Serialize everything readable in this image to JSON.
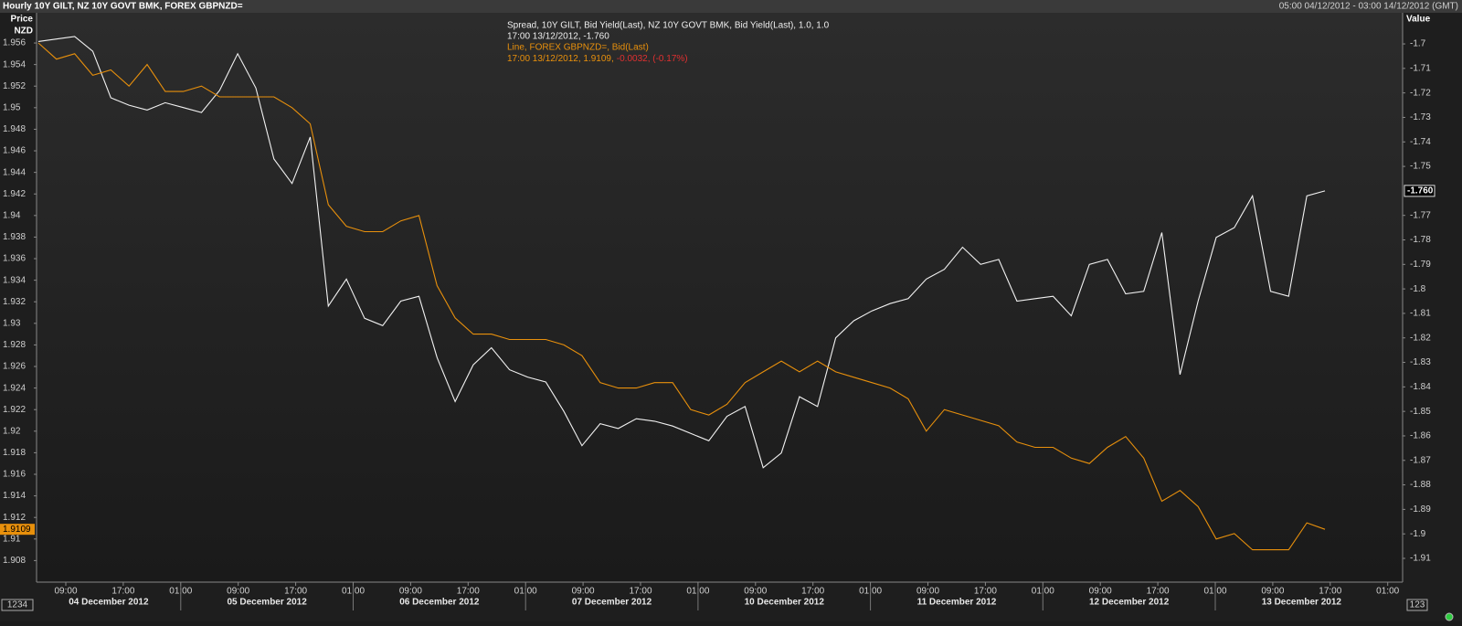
{
  "header": {
    "title": "Hourly 10Y GILT, NZ 10Y GOVT BMK, FOREX GBPNZD=",
    "range": "05:00 04/12/2012 - 03:00 14/12/2012 (GMT)"
  },
  "chart_data": {
    "type": "line",
    "y_title": "Price",
    "y_unit": "NZD",
    "y2_title": "Value",
    "x_tick_labels": [
      "09:00",
      "17:00",
      "01:00",
      "09:00",
      "17:00",
      "01:00",
      "09:00",
      "17:00",
      "01:00",
      "09:00",
      "17:00",
      "01:00",
      "09:00",
      "17:00",
      "01:00",
      "09:00",
      "17:00",
      "01:00",
      "09:00",
      "17:00",
      "01:00",
      "09:00",
      "17:00",
      "01:00"
    ],
    "date_labels": [
      "04 December 2012",
      "05 December 2012",
      "06 December 2012",
      "07 December 2012",
      "10 December 2012",
      "11 December 2012",
      "12 December 2012",
      "13 December 2012"
    ],
    "ylim": [
      1.906,
      1.9588
    ],
    "yticks": [
      1.908,
      1.91,
      1.912,
      1.914,
      1.916,
      1.918,
      1.92,
      1.922,
      1.924,
      1.926,
      1.928,
      1.93,
      1.932,
      1.934,
      1.936,
      1.938,
      1.94,
      1.942,
      1.944,
      1.946,
      1.948,
      1.95,
      1.952,
      1.954,
      1.956
    ],
    "y2lim": [
      -1.9197,
      -1.6873
    ],
    "y2ticks": [
      -1.7,
      -1.71,
      -1.72,
      -1.73,
      -1.74,
      -1.75,
      -1.77,
      -1.78,
      -1.79,
      -1.8,
      -1.81,
      -1.82,
      -1.83,
      -1.84,
      -1.85,
      -1.86,
      -1.87,
      -1.88,
      -1.89,
      -1.9,
      -1.91
    ],
    "series": [
      {
        "name": "Spread, 10Y GILT, Bid Yield(Last), NZ 10Y GOVT BMK, Bid Yield(Last),  1.0, 1.0",
        "info": "17:00 13/12/2012, -1.760",
        "last_label": "-1.760",
        "color": "#f2f2f2",
        "axis": "y2",
        "values": [
          -1.699,
          -1.698,
          -1.697,
          -1.703,
          -1.722,
          -1.725,
          -1.727,
          -1.724,
          -1.726,
          -1.728,
          -1.719,
          -1.704,
          -1.718,
          -1.747,
          -1.757,
          -1.738,
          -1.807,
          -1.796,
          -1.812,
          -1.815,
          -1.805,
          -1.803,
          -1.828,
          -1.846,
          -1.831,
          -1.824,
          -1.833,
          -1.836,
          -1.838,
          -1.85,
          -1.864,
          -1.855,
          -1.857,
          -1.853,
          -1.854,
          -1.856,
          -1.859,
          -1.862,
          -1.852,
          -1.848,
          -1.873,
          -1.867,
          -1.844,
          -1.848,
          -1.82,
          -1.813,
          -1.809,
          -1.806,
          -1.804,
          -1.796,
          -1.792,
          -1.783,
          -1.79,
          -1.788,
          -1.805,
          -1.804,
          -1.803,
          -1.811,
          -1.79,
          -1.788,
          -1.802,
          -1.801,
          -1.777,
          -1.835,
          -1.805,
          -1.779,
          -1.775,
          -1.762,
          -1.801,
          -1.803,
          -1.762,
          -1.76
        ]
      },
      {
        "name": "Line, FOREX GBPNZD=, Bid(Last)",
        "info": "17:00 13/12/2012, 1.9109,",
        "change": "-0.0032, (-0.17%)",
        "last_label": "1.9109",
        "color": "#e8900c",
        "axis": "y",
        "values": [
          1.956,
          1.9545,
          1.955,
          1.953,
          1.9535,
          1.952,
          1.954,
          1.9515,
          1.9515,
          1.952,
          1.951,
          1.951,
          1.951,
          1.951,
          1.95,
          1.9485,
          1.941,
          1.939,
          1.9385,
          1.9385,
          1.9395,
          1.94,
          1.9335,
          1.9305,
          1.929,
          1.929,
          1.9285,
          1.9285,
          1.9285,
          1.928,
          1.927,
          1.9245,
          1.924,
          1.924,
          1.9245,
          1.9245,
          1.922,
          1.9215,
          1.9225,
          1.9245,
          1.9255,
          1.9265,
          1.9255,
          1.9265,
          1.9255,
          1.925,
          1.9245,
          1.924,
          1.923,
          1.92,
          1.922,
          1.9215,
          1.921,
          1.9205,
          1.919,
          1.9185,
          1.9185,
          1.9175,
          1.917,
          1.9185,
          1.9195,
          1.9175,
          1.9135,
          1.9145,
          1.913,
          1.91,
          1.9105,
          1.909,
          1.909,
          1.909,
          1.9115,
          1.9109
        ]
      }
    ],
    "corner_labels": [
      "1234",
      "123"
    ]
  }
}
